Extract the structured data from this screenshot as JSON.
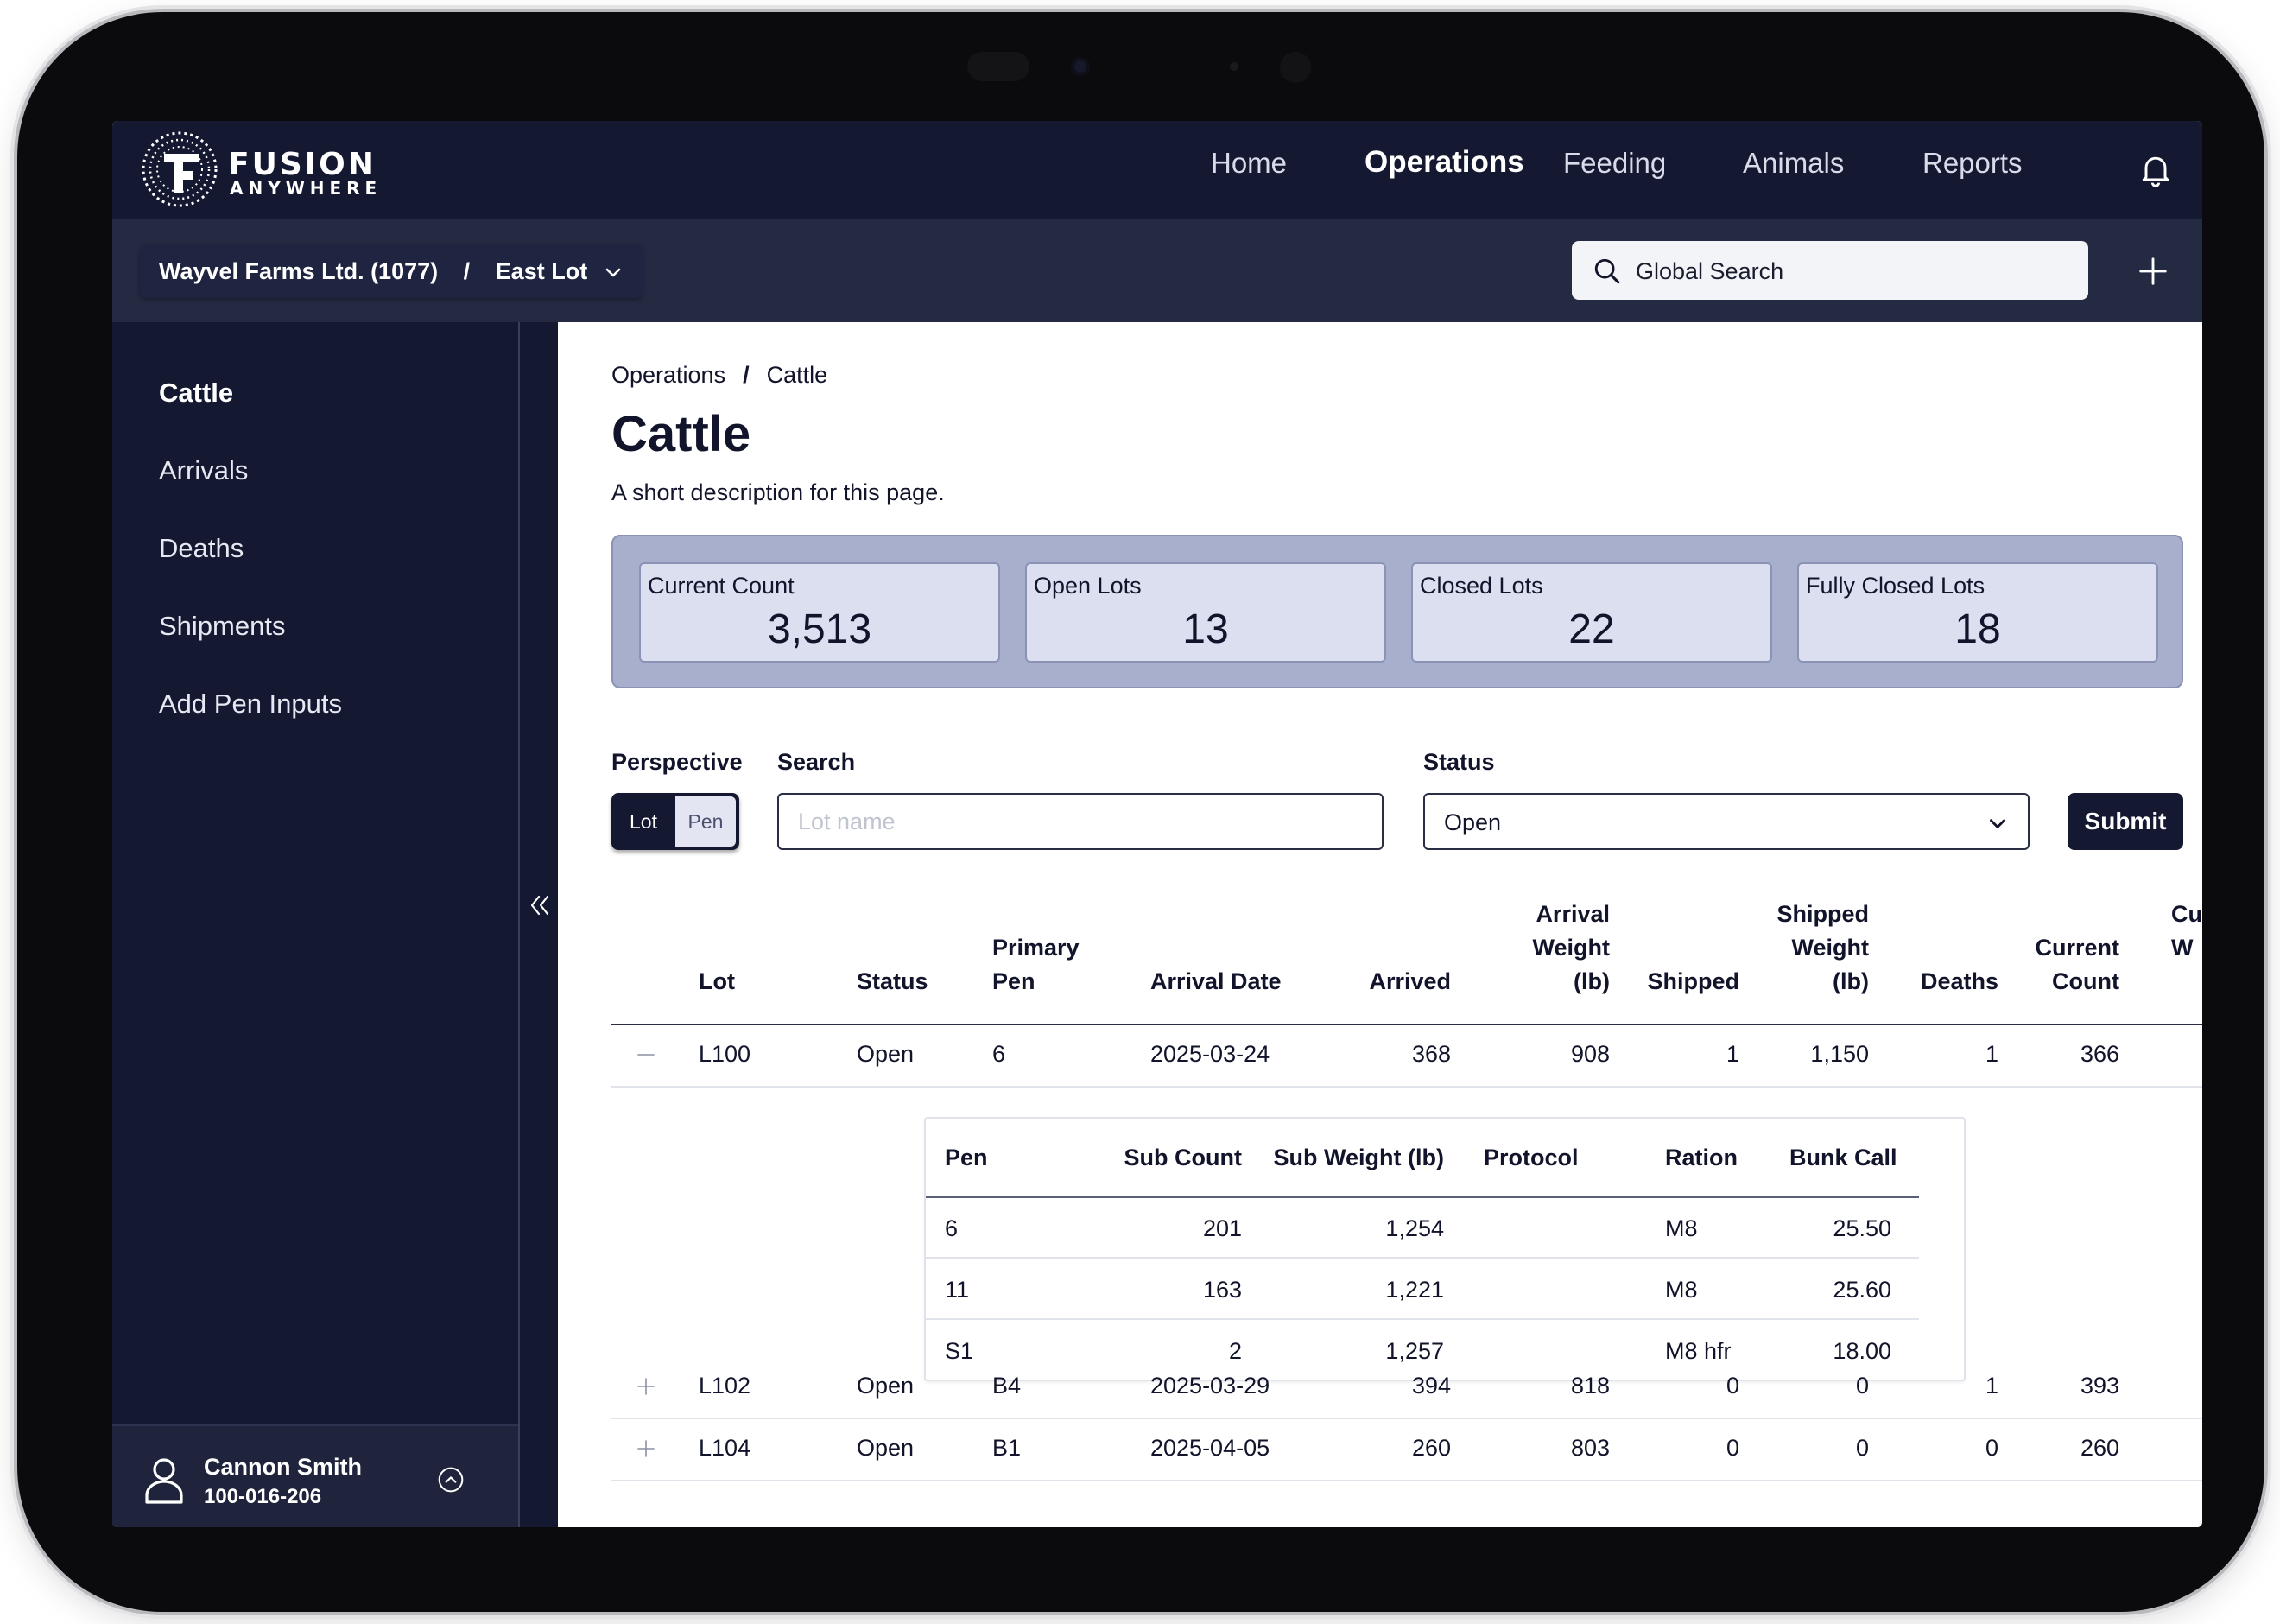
{
  "app": {
    "brand_line1": "FUSION",
    "brand_line2": "ANYWHERE"
  },
  "nav": {
    "items": [
      {
        "label": "Home",
        "active": false
      },
      {
        "label": "Operations",
        "active": true
      },
      {
        "label": "Feeding",
        "active": false
      },
      {
        "label": "Animals",
        "active": false
      },
      {
        "label": "Reports",
        "active": false
      }
    ],
    "bell_icon": "bell-icon"
  },
  "context": {
    "org": "Wayvel Farms Ltd. (1077)",
    "separator": "/",
    "lot": "East Lot",
    "global_search_placeholder": "Global Search",
    "add_icon": "plus-icon"
  },
  "sidebar": {
    "items": [
      {
        "label": "Cattle",
        "active": true
      },
      {
        "label": "Arrivals",
        "active": false
      },
      {
        "label": "Deaths",
        "active": false
      },
      {
        "label": "Shipments",
        "active": false
      },
      {
        "label": "Add Pen Inputs",
        "active": false
      }
    ],
    "user": {
      "name": "Cannon Smith",
      "id": "100-016-206"
    }
  },
  "page": {
    "breadcrumb": [
      "Operations",
      "Cattle"
    ],
    "breadcrumb_sep": "/",
    "title": "Cattle",
    "description": "A short description for this page."
  },
  "stats": [
    {
      "label": "Current Count",
      "value": "3,513"
    },
    {
      "label": "Open Lots",
      "value": "13"
    },
    {
      "label": "Closed Lots",
      "value": "22"
    },
    {
      "label": "Fully Closed Lots",
      "value": "18"
    }
  ],
  "filters": {
    "perspective_label": "Perspective",
    "perspective_options": [
      "Lot",
      "Pen"
    ],
    "perspective_selected": "Lot",
    "search_label": "Search",
    "search_placeholder": "Lot name",
    "search_value": "",
    "status_label": "Status",
    "status_value": "Open",
    "submit_label": "Submit"
  },
  "table": {
    "columns": [
      [
        "Lot"
      ],
      [
        "Status"
      ],
      [
        "Primary",
        "Pen"
      ],
      [
        "Arrival Date"
      ],
      [
        "Arrived"
      ],
      [
        "Arrival",
        "Weight",
        "(lb)"
      ],
      [
        "Shipped"
      ],
      [
        "Shipped",
        "Weight",
        "(lb)"
      ],
      [
        "Deaths"
      ],
      [
        "Current",
        "Count"
      ],
      [
        "Cu",
        "W"
      ]
    ],
    "rows": [
      {
        "expanded": true,
        "lot": "L100",
        "status": "Open",
        "primary_pen": "6",
        "arrival_date": "2025-03-24",
        "arrived": "368",
        "arrival_weight": "908",
        "shipped": "1",
        "shipped_weight": "1,150",
        "deaths": "1",
        "current_count": "366"
      },
      {
        "expanded": false,
        "lot": "L102",
        "status": "Open",
        "primary_pen": "B4",
        "arrival_date": "2025-03-29",
        "arrived": "394",
        "arrival_weight": "818",
        "shipped": "0",
        "shipped_weight": "0",
        "deaths": "1",
        "current_count": "393"
      },
      {
        "expanded": false,
        "lot": "L104",
        "status": "Open",
        "primary_pen": "B1",
        "arrival_date": "2025-04-05",
        "arrived": "260",
        "arrival_weight": "803",
        "shipped": "0",
        "shipped_weight": "0",
        "deaths": "0",
        "current_count": "260"
      }
    ],
    "subtable": {
      "columns": [
        "Pen",
        "Sub Count",
        "Sub Weight (lb)",
        "Protocol",
        "Ration",
        "Bunk Call"
      ],
      "rows": [
        {
          "pen": "6",
          "sub_count": "201",
          "sub_weight": "1,254",
          "protocol": "",
          "ration": "M8",
          "bunk_call": "25.50"
        },
        {
          "pen": "11",
          "sub_count": "163",
          "sub_weight": "1,221",
          "protocol": "",
          "ration": "M8",
          "bunk_call": "25.60"
        },
        {
          "pen": "S1",
          "sub_count": "2",
          "sub_weight": "1,257",
          "protocol": "",
          "ration": "M8 hfr",
          "bunk_call": "18.00"
        }
      ]
    }
  }
}
